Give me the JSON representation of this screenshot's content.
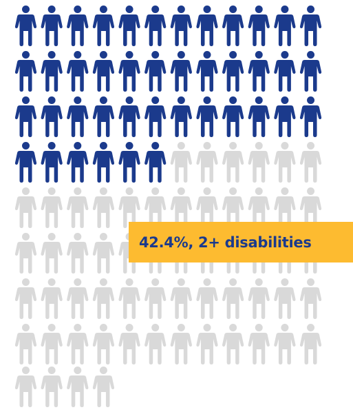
{
  "chart_data": {
    "type": "pictograph",
    "total_icons": 100,
    "highlighted_icons": 42,
    "highlighted_percent": 42.4,
    "columns": 12,
    "callout_label": "42.4%, 2+ disabilities"
  },
  "colors": {
    "highlighted": "#1b3a8c",
    "remaining": "#d9d9d9",
    "callout_background": "#fdbb30",
    "callout_text": "#1b3a8c"
  },
  "icons": {
    "unit": "person-icon"
  }
}
